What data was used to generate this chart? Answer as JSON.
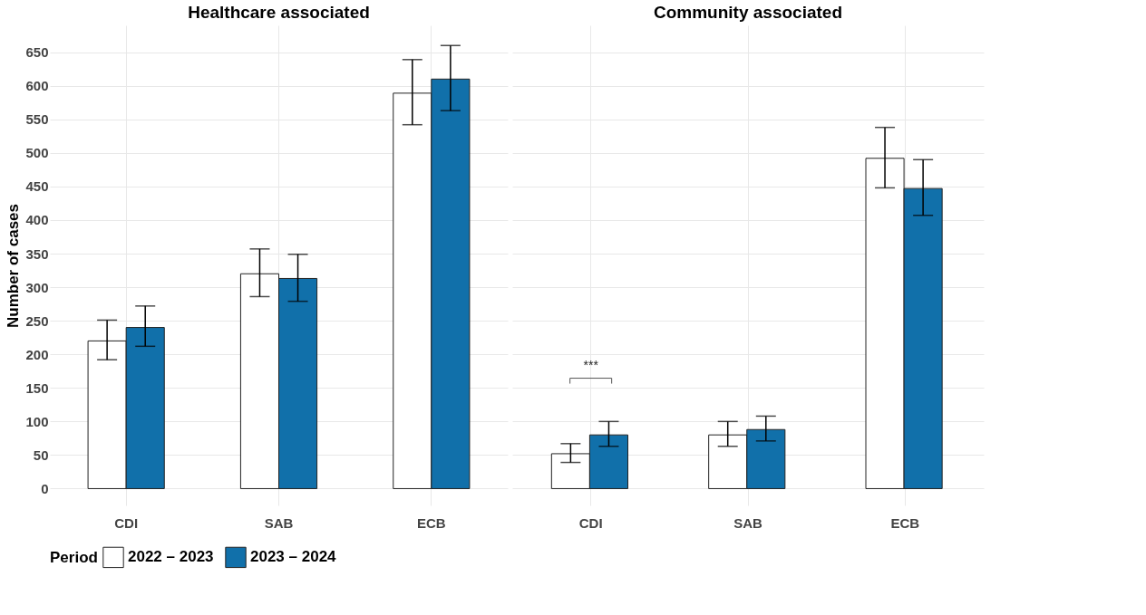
{
  "chart_data": [
    {
      "type": "bar",
      "title": "Healthcare associated",
      "ylabel": "Number of cases",
      "categories": [
        "CDI",
        "SAB",
        "ECB"
      ],
      "ylim": [
        -25,
        690
      ],
      "yticks": [
        0,
        50,
        100,
        150,
        200,
        250,
        300,
        350,
        400,
        450,
        500,
        550,
        600,
        650
      ],
      "grid": true,
      "legend": "bottom",
      "legend_title": "Period",
      "series": [
        {
          "name": "2022 – 2023",
          "color": "#ffffff",
          "values": [
            220,
            320,
            589
          ],
          "errors": [
            [
              192,
              251
            ],
            [
              286,
              357
            ],
            [
              542,
              639
            ]
          ]
        },
        {
          "name": "2023 – 2024",
          "color": "#1170aa",
          "values": [
            240,
            313,
            610
          ],
          "errors": [
            [
              212,
              272
            ],
            [
              279,
              349
            ],
            [
              563,
              660
            ]
          ]
        }
      ]
    },
    {
      "type": "bar",
      "title": "Community associated",
      "categories": [
        "CDI",
        "SAB",
        "ECB"
      ],
      "ylim": [
        -25,
        690
      ],
      "yticks": [
        0,
        50,
        100,
        150,
        200,
        250,
        300,
        350,
        400,
        450,
        500,
        550,
        600,
        650
      ],
      "grid": true,
      "tick_labels": "x",
      "annotations": [
        "***"
      ],
      "series": [
        {
          "name": "2022 – 2023",
          "color": "#ffffff",
          "values": [
            52,
            80,
            492
          ],
          "errors": [
            [
              39,
              67
            ],
            [
              63,
              100
            ],
            [
              448,
              538
            ]
          ]
        },
        {
          "name": "2023 – 2024",
          "color": "#1170aa",
          "values": [
            80,
            88,
            447
          ],
          "errors": [
            [
              63,
              100
            ],
            [
              71,
              108
            ],
            [
              407,
              490
            ]
          ]
        }
      ]
    }
  ]
}
